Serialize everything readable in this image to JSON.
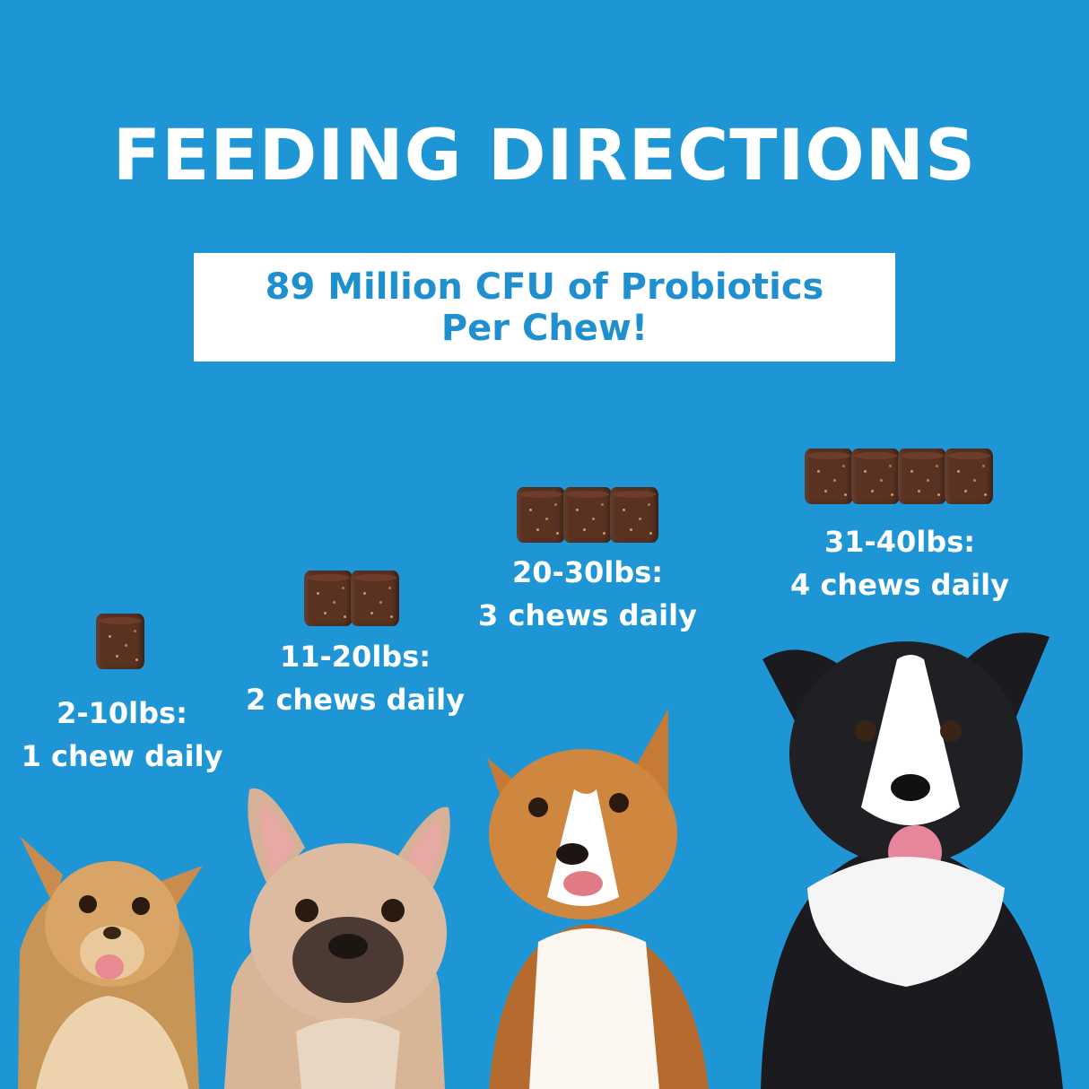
{
  "title": "FEEDING DIRECTIONS",
  "banner": {
    "line1": "89 Million CFU of Probiotics",
    "line2": "Per Chew!"
  },
  "tiers": [
    {
      "weight": "2-10lbs:",
      "dose": "1 chew daily",
      "chews": 1
    },
    {
      "weight": "11-20lbs:",
      "dose": "2 chews daily",
      "chews": 2
    },
    {
      "weight": "20-30lbs:",
      "dose": "3 chews daily",
      "chews": 3
    },
    {
      "weight": "31-40lbs:",
      "dose": "4 chews daily",
      "chews": 4
    }
  ],
  "dogs": [
    "chihuahua",
    "french-bulldog",
    "corgi",
    "border-collie"
  ],
  "colors": {
    "background": "#1e96d6",
    "banner_text": "#1f8fd0",
    "chew": "#5a3222"
  }
}
